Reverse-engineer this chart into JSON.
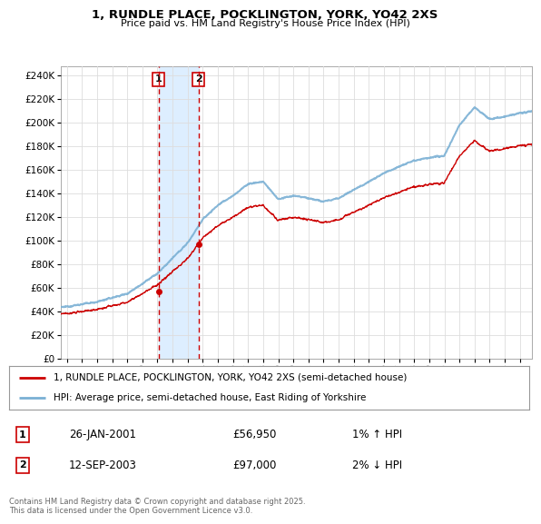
{
  "title": "1, RUNDLE PLACE, POCKLINGTON, YORK, YO42 2XS",
  "subtitle": "Price paid vs. HM Land Registry's House Price Index (HPI)",
  "legend_label_red": "1, RUNDLE PLACE, POCKLINGTON, YORK, YO42 2XS (semi-detached house)",
  "legend_label_blue": "HPI: Average price, semi-detached house, East Riding of Yorkshire",
  "footer": "Contains HM Land Registry data © Crown copyright and database right 2025.\nThis data is licensed under the Open Government Licence v3.0.",
  "purchase1_date": "26-JAN-2001",
  "purchase1_price": "£56,950",
  "purchase1_hpi": "1% ↑ HPI",
  "purchase1_year": 2001.07,
  "purchase2_date": "12-SEP-2003",
  "purchase2_price": "£97,000",
  "purchase2_hpi": "2% ↓ HPI",
  "purchase2_year": 2003.71,
  "ylim": [
    0,
    248000
  ],
  "yticks": [
    0,
    20000,
    40000,
    60000,
    80000,
    100000,
    120000,
    140000,
    160000,
    180000,
    200000,
    220000,
    240000
  ],
  "xlim_start": 1994.6,
  "xlim_end": 2025.8,
  "red_color": "#cc0000",
  "blue_color": "#7ab0d4",
  "shade_color": "#ddeeff",
  "background_color": "#ffffff",
  "grid_color": "#dddddd",
  "purchase_point1_y": 56950,
  "purchase_point2_y": 97000
}
